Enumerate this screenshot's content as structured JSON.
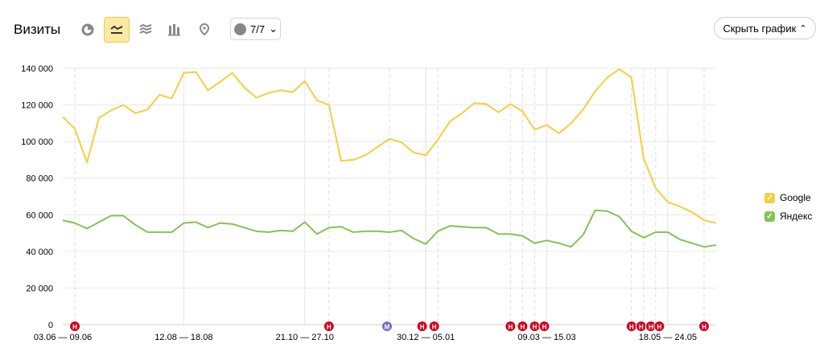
{
  "header": {
    "title": "Визиты",
    "comments_label": "7/7",
    "hide_button_label": "Скрыть график"
  },
  "chart_data": {
    "type": "line",
    "ylim": [
      0,
      140000
    ],
    "yticks": [
      "0",
      "20 000",
      "40 000",
      "60 000",
      "80 000",
      "100 000",
      "120 000",
      "140 000"
    ],
    "x_labels": [
      "03.06 — 09.06",
      "12.08 — 18.08",
      "21.10 — 27.10",
      "30.12 — 05.01",
      "09.03 — 15.03",
      "18.05 — 24.05"
    ],
    "x_label_index": [
      0,
      10,
      20,
      30,
      40,
      50
    ],
    "series": [
      {
        "name": "Google",
        "color": "#f8cd3f",
        "values": [
          113500,
          107000,
          88500,
          113000,
          117000,
          120000,
          115500,
          117500,
          125500,
          123500,
          137500,
          138000,
          128000,
          132500,
          137500,
          129500,
          124000,
          126500,
          128000,
          127000,
          133000,
          122500,
          120000,
          89500,
          90000,
          92500,
          97000,
          101500,
          99500,
          94000,
          92500,
          101000,
          111000,
          115500,
          121000,
          120500,
          116000,
          120500,
          116500,
          106500,
          109000,
          104500,
          110000,
          117500,
          127500,
          135000,
          139500,
          135000,
          91000,
          74500,
          67000,
          64500,
          61500,
          57000,
          55500
        ]
      },
      {
        "name": "Яндекс",
        "color": "#84c255",
        "values": [
          57000,
          55500,
          52500,
          56000,
          59500,
          59500,
          54500,
          50500,
          50500,
          50500,
          55500,
          56000,
          53000,
          55500,
          55000,
          53000,
          51000,
          50500,
          51500,
          51000,
          56000,
          49500,
          53000,
          53500,
          50500,
          51000,
          51000,
          50500,
          51500,
          47000,
          44000,
          51000,
          54000,
          53500,
          53000,
          53000,
          49500,
          49500,
          48500,
          44500,
          46000,
          44500,
          42500,
          49000,
          62500,
          62000,
          59000,
          51000,
          47500,
          50500,
          50500,
          46500,
          44500,
          42500,
          43500
        ]
      }
    ],
    "dashed_vlines_index": [
      1,
      22,
      27,
      30,
      31,
      37,
      38,
      39,
      47,
      48,
      49,
      53
    ],
    "markers": [
      {
        "i": 1,
        "label": "Н",
        "color": "#d0021b"
      },
      {
        "i": 22,
        "label": "Н",
        "color": "#d0021b"
      },
      {
        "i": 26.8,
        "label": "М",
        "color": "#7b68c4"
      },
      {
        "i": 29.7,
        "label": "Н",
        "color": "#d0021b"
      },
      {
        "i": 30.7,
        "label": "Н",
        "color": "#d0021b"
      },
      {
        "i": 37.0,
        "label": "Н",
        "color": "#d0021b"
      },
      {
        "i": 38.0,
        "label": "Н",
        "color": "#d0021b"
      },
      {
        "i": 39.0,
        "label": "Н",
        "color": "#d0021b"
      },
      {
        "i": 39.8,
        "label": "Н",
        "color": "#d0021b"
      },
      {
        "i": 47.0,
        "label": "Н",
        "color": "#d0021b"
      },
      {
        "i": 47.8,
        "label": "Н",
        "color": "#d0021b"
      },
      {
        "i": 48.6,
        "label": "Н",
        "color": "#d0021b"
      },
      {
        "i": 49.3,
        "label": "Н",
        "color": "#d0021b"
      },
      {
        "i": 53.0,
        "label": "Н",
        "color": "#d0021b"
      }
    ]
  }
}
